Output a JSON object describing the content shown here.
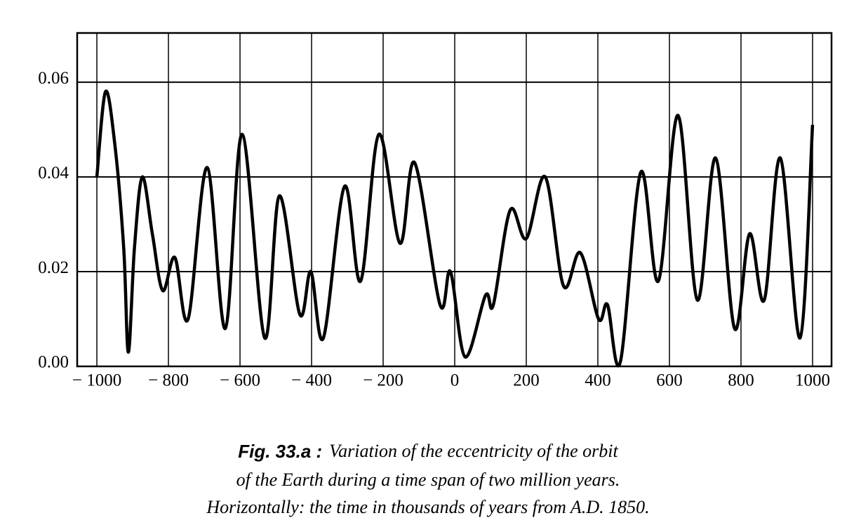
{
  "chart_data": {
    "type": "line",
    "x": [
      -1000,
      -976,
      -950,
      -925,
      -912,
      -895,
      -873,
      -845,
      -816,
      -782,
      -745,
      -692,
      -641,
      -594,
      -531,
      -490,
      -433,
      -402,
      -367,
      -308,
      -263,
      -212,
      -153,
      -112,
      -41,
      -12,
      29,
      86,
      108,
      155,
      200,
      253,
      304,
      351,
      402,
      427,
      463,
      520,
      569,
      624,
      678,
      729,
      782,
      824,
      865,
      910,
      965,
      1000
    ],
    "series": [
      {
        "name": "eccentricity",
        "color": "#000000",
        "values": [
          0.04,
          0.058,
          0.047,
          0.025,
          0.003,
          0.025,
          0.04,
          0.028,
          0.016,
          0.023,
          0.01,
          0.042,
          0.008,
          0.049,
          0.006,
          0.036,
          0.011,
          0.02,
          0.006,
          0.038,
          0.018,
          0.049,
          0.026,
          0.043,
          0.013,
          0.02,
          0.002,
          0.015,
          0.013,
          0.033,
          0.027,
          0.04,
          0.017,
          0.024,
          0.01,
          0.013,
          0.001,
          0.041,
          0.018,
          0.053,
          0.014,
          0.044,
          0.008,
          0.028,
          0.014,
          0.044,
          0.006,
          0.051
        ]
      }
    ],
    "xlim": [
      -1055,
      1053
    ],
    "ylim": [
      0,
      0.0704
    ],
    "xticks": [
      {
        "value": -1000,
        "label": "− 1000"
      },
      {
        "value": -800,
        "label": "− 800"
      },
      {
        "value": -600,
        "label": "− 600"
      },
      {
        "value": -400,
        "label": "− 400"
      },
      {
        "value": -200,
        "label": "− 200"
      },
      0,
      200,
      400,
      600,
      800,
      1000
    ],
    "yticks": [
      {
        "value": 0,
        "label": "0.00"
      },
      {
        "value": 0.02,
        "label": "0.02"
      },
      {
        "value": 0.04,
        "label": "0.04"
      },
      {
        "value": 0.06,
        "label": "0.06"
      }
    ],
    "grid": true,
    "caption": {
      "label": "Fig. 33.a :",
      "lines": [
        "Variation of the eccentricity of the orbit",
        "of the Earth during a time span of two million years.",
        "Horizontally: the time in thousands of years from A.D. 1850."
      ]
    }
  }
}
